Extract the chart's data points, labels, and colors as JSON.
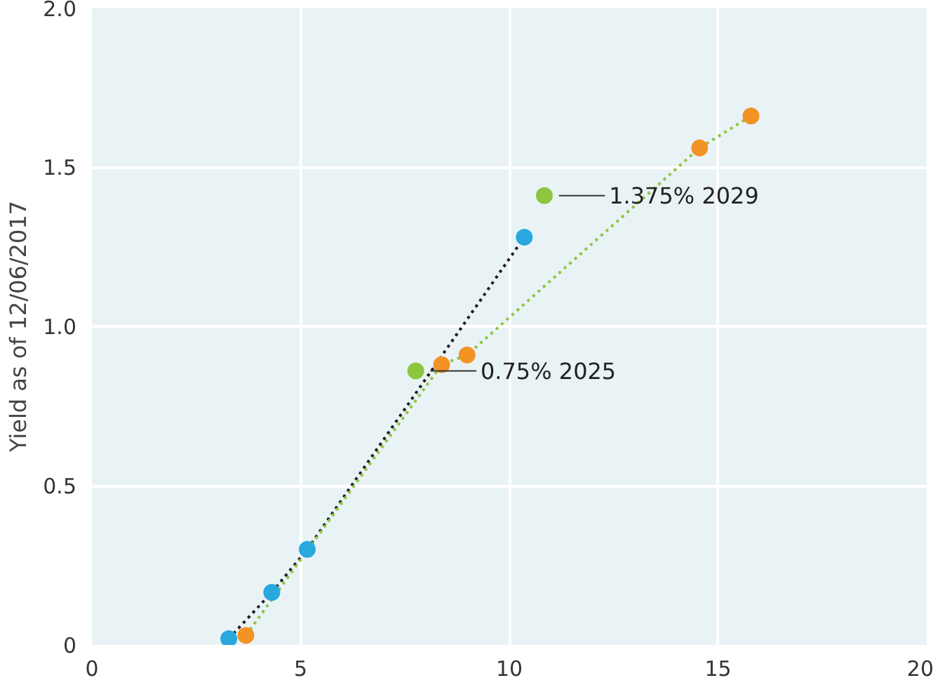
{
  "chart_data": {
    "type": "scatter",
    "ylabel": "Yield as of 12/06/2017",
    "xlim": [
      0,
      20
    ],
    "xticks": [
      0,
      5,
      10,
      15,
      20
    ],
    "ylim": [
      0,
      2.0
    ],
    "yticks": [
      0,
      0.5,
      {
        "value": 1.0,
        "label": "1.0"
      },
      1.5,
      {
        "value": 2.0,
        "label": "2.0"
      }
    ],
    "grid": true,
    "series": [
      {
        "type": "line",
        "color": "#1a1a1a",
        "line_style": "dotted",
        "x": [
          3.28,
          4.31,
          5.16,
          10.36
        ],
        "values": [
          0.02,
          0.165,
          0.3,
          1.28
        ]
      },
      {
        "type": "line",
        "color": "#8dc63f",
        "line_style": "dotted",
        "x": [
          3.69,
          8.38,
          8.99,
          14.56,
          15.79
        ],
        "values": [
          0.03,
          0.88,
          0.91,
          1.56,
          1.66
        ]
      },
      {
        "color": "#29a8e0",
        "marker": "circle",
        "x": [
          3.28,
          4.31,
          5.16,
          10.36
        ],
        "values": [
          0.02,
          0.165,
          0.3,
          1.28
        ]
      },
      {
        "color": "#f39325",
        "marker": "circle",
        "x": [
          3.69,
          8.38,
          8.99,
          14.56,
          15.79
        ],
        "values": [
          0.03,
          0.88,
          0.91,
          1.56,
          1.66
        ]
      },
      {
        "color": "#8dc63f",
        "marker": "circle",
        "x": [
          7.76,
          10.84
        ],
        "values": [
          0.86,
          1.41
        ]
      }
    ],
    "annotations": [
      {
        "text": "0.75% 2025",
        "x": 7.76,
        "y": 0.86
      },
      {
        "text": "1.375% 2029",
        "x": 10.84,
        "y": 1.41
      }
    ]
  }
}
